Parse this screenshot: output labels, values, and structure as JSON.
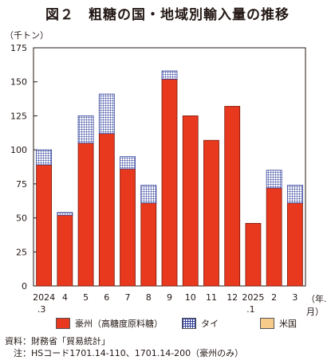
{
  "title": "図２　粗糖の国・地域別輸入量の推移",
  "unit_label": "（千トン）",
  "x_unit_label": "（年.月）",
  "colors": {
    "australia": "#e8391e",
    "thailand_grid": "#2e3d99",
    "usa": "#f7cb8a"
  },
  "chart_data": {
    "type": "bar",
    "stacked": true,
    "categories": [
      [
        "2024",
        ".3"
      ],
      [
        "4",
        ""
      ],
      [
        "5",
        ""
      ],
      [
        "6",
        ""
      ],
      [
        "7",
        ""
      ],
      [
        "8",
        ""
      ],
      [
        "9",
        ""
      ],
      [
        "10",
        ""
      ],
      [
        "11",
        ""
      ],
      [
        "12",
        ""
      ],
      [
        "2025",
        ".1"
      ],
      [
        "2",
        ""
      ],
      [
        "3",
        ""
      ]
    ],
    "series": [
      {
        "name": "豪州（高糖度原料糖）",
        "key": "australia",
        "values": [
          89,
          52,
          105,
          112,
          86,
          61,
          152,
          125,
          107,
          132,
          46,
          72,
          61
        ]
      },
      {
        "name": "タイ",
        "key": "thailand",
        "values": [
          11,
          2,
          20,
          29,
          9,
          13,
          6,
          0,
          0,
          0,
          0,
          13,
          13
        ]
      },
      {
        "name": "米国",
        "key": "usa",
        "values": [
          0,
          0,
          0,
          0,
          0,
          0,
          0,
          0,
          0,
          0,
          0,
          0,
          0
        ]
      }
    ],
    "ylim": [
      0,
      175
    ],
    "yticks": [
      0,
      25,
      50,
      75,
      100,
      125,
      150,
      175
    ],
    "legend_position": "bottom",
    "grid": false
  },
  "notes": [
    "資料：財務省「貿易統計」",
    "　注：HSコード1701.14-110、1701.14-200（豪州のみ）"
  ]
}
